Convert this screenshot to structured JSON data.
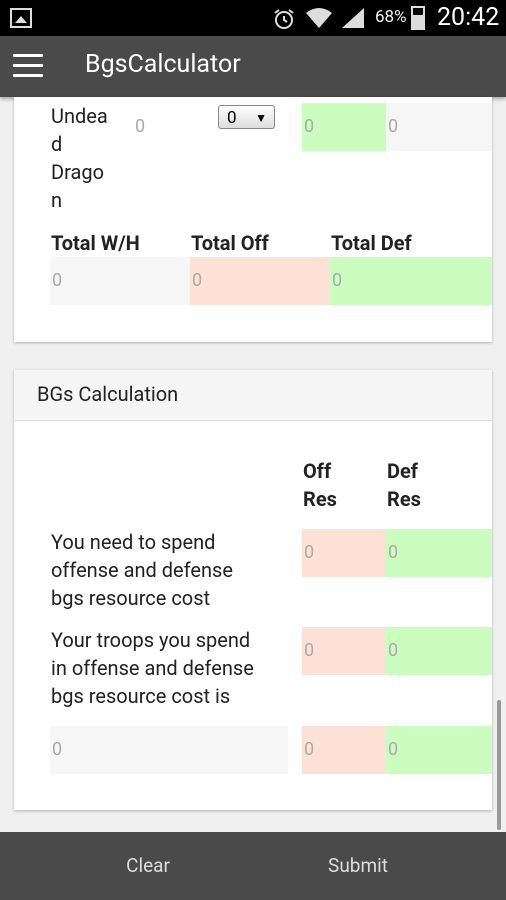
{
  "status_bar": {
    "battery": "68%",
    "time": "20:42"
  },
  "app_bar": {
    "title": "BgsCalculator"
  },
  "troops": {
    "row_label": "Undead Dragon",
    "row_label_lines": [
      "Undea",
      "d",
      "Drago",
      "n"
    ],
    "count": "0",
    "select_value": "0",
    "off": "0",
    "def": "0"
  },
  "totals": {
    "headers": [
      "Total W/H",
      "Total Off",
      "Total Def"
    ],
    "values": [
      "0",
      "0",
      "0"
    ]
  },
  "bgs": {
    "title": "BGs Calculation",
    "col_off": [
      "Off",
      "Res"
    ],
    "col_def": [
      "Def",
      "Res"
    ],
    "need_label": [
      "You need to spend",
      "offense and defense",
      "bgs resource cost"
    ],
    "need_off": "0",
    "need_def": "0",
    "spend_label": [
      "Your troops you spend",
      "in offense and defense",
      "bgs resource cost is"
    ],
    "spend_off": "0",
    "spend_def": "0",
    "summary_value": "0",
    "summary_off": "0",
    "summary_def": "0"
  },
  "bottom_bar": {
    "clear_label": "Clear",
    "submit_label": "Submit"
  }
}
